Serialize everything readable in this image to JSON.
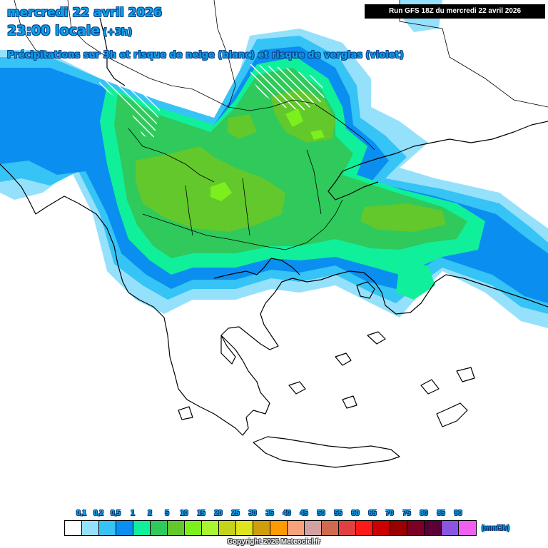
{
  "header": {
    "date": "mercredi 22 avril 2026",
    "time": "23:00 locale",
    "offset": "(+3h)",
    "description": "Précipitations sur 3h et risque de neige (blanc) et risque de verglas (violet)"
  },
  "run_info": "Run GFS 18Z du mercredi 22 avril 2026",
  "legend": {
    "units": "(mm/3h)",
    "labels": [
      "0,1",
      "0,2",
      "0,5",
      "1",
      "2",
      "5",
      "10",
      "15",
      "20",
      "25",
      "30",
      "35",
      "40",
      "45",
      "50",
      "55",
      "60",
      "65",
      "70",
      "75",
      "80",
      "85",
      "90"
    ],
    "colors": [
      "#ffffff",
      "#95e1fb",
      "#36c3f5",
      "#0a8ef0",
      "#10f09a",
      "#2fc95c",
      "#62c82c",
      "#7cf01c",
      "#aaf531",
      "#c6d31b",
      "#e0e41c",
      "#cf9f0b",
      "#ff9a07",
      "#f7a27a",
      "#d2a2a2",
      "#d06a4e",
      "#e04040",
      "#ff1a1a",
      "#cc0000",
      "#990000",
      "#7a0026",
      "#5a0037",
      "#8a55e0",
      "#f060f0"
    ]
  },
  "copyright": "Copyright 2026 Meteociel.fr",
  "map": {
    "region": "Balkans / Greece / Western Turkey",
    "snow_risk_color": "#ffffff",
    "coastline_color": "#000000"
  }
}
